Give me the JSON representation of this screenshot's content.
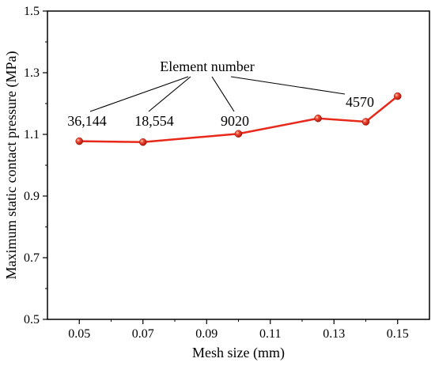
{
  "chart_data": {
    "type": "line",
    "title": "",
    "xlabel": "Mesh size (mm)",
    "ylabel": "Maximum static contact pressure (MPa)",
    "xlim": [
      0.04,
      0.16
    ],
    "ylim": [
      0.5,
      1.5
    ],
    "xticks": [
      "0.05",
      "0.07",
      "0.09",
      "0.11",
      "0.13",
      "0.15"
    ],
    "yticks": [
      "0.5",
      "0.7",
      "0.9",
      "1.1",
      "1.3",
      "1.5"
    ],
    "grid": false,
    "legend": "none",
    "series": [
      {
        "color": "#e8281a",
        "marker": "sphere",
        "points": [
          {
            "x": 0.05,
            "y": 1.078
          },
          {
            "x": 0.07,
            "y": 1.075
          },
          {
            "x": 0.1,
            "y": 1.102
          },
          {
            "x": 0.125,
            "y": 1.152
          },
          {
            "x": 0.14,
            "y": 1.141
          },
          {
            "x": 0.15,
            "y": 1.224
          }
        ]
      }
    ],
    "annotations": {
      "heading": "Element number",
      "labels": [
        {
          "text": "36,144",
          "x": 0.05
        },
        {
          "text": "18,554",
          "x": 0.07
        },
        {
          "text": "9020",
          "x": 0.1
        },
        {
          "text": "4570",
          "x": 0.14
        }
      ]
    }
  }
}
